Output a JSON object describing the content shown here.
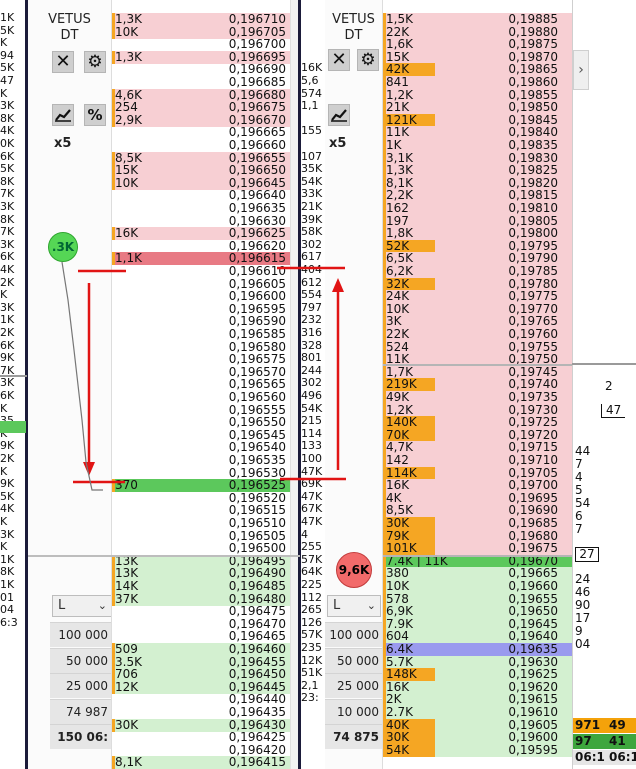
{
  "left_edge_labels": [
    "1K",
    "5K",
    "K",
    "94",
    "5K",
    "47",
    "K",
    "3K",
    "8K",
    "4K",
    "0K",
    "6K",
    "5K",
    "8K",
    "7K",
    "3K",
    "8K",
    "7K",
    "3K",
    "6K",
    "4K",
    "2K",
    "K",
    "3K",
    "1K",
    "2K",
    "6K",
    "9K",
    "7K",
    "3K",
    "6K",
    "K",
    "35",
    "K",
    "9K",
    "2K",
    "K",
    "9K",
    "5K",
    "4K",
    "K",
    "3K",
    "K",
    "1K",
    "8K",
    "1K",
    "01",
    "04",
    "6:3"
  ],
  "left_dom": {
    "title_line1": "VETUS",
    "title_line2": "DT",
    "close_icon": "close-icon",
    "gear_icon": "gear-icon",
    "chart_icon": "chart-line-icon",
    "percent_label": "%",
    "multiplier": "x5",
    "bubble_label": ".3K",
    "dropdown_value": "L",
    "quantities": [
      "100 000",
      "50 000",
      "25 000",
      "74 987",
      "150 06:"
    ],
    "rows": [
      {
        "vol": "1,3K",
        "price": "0,196710",
        "side": "ask"
      },
      {
        "vol": "10K",
        "price": "0,196705",
        "side": "ask"
      },
      {
        "vol": "",
        "price": "0,196700",
        "side": "none"
      },
      {
        "vol": "1,3K",
        "price": "0,196695",
        "side": "ask"
      },
      {
        "vol": "",
        "price": "0,196690",
        "side": "none"
      },
      {
        "vol": "",
        "price": "0,196685",
        "side": "none"
      },
      {
        "vol": "4,6K",
        "price": "0,196680",
        "side": "ask"
      },
      {
        "vol": "254",
        "price": "0,196675",
        "side": "ask"
      },
      {
        "vol": "2,9K",
        "price": "0,196670",
        "side": "ask"
      },
      {
        "vol": "",
        "price": "0,196665",
        "side": "none"
      },
      {
        "vol": "",
        "price": "0,196660",
        "side": "none"
      },
      {
        "vol": "8,5K",
        "price": "0,196655",
        "side": "ask"
      },
      {
        "vol": "15K",
        "price": "0,196650",
        "side": "ask"
      },
      {
        "vol": "10K",
        "price": "0,196645",
        "side": "ask"
      },
      {
        "vol": "",
        "price": "0,196640",
        "side": "none"
      },
      {
        "vol": "",
        "price": "0,196635",
        "side": "none"
      },
      {
        "vol": "",
        "price": "0,196630",
        "side": "none"
      },
      {
        "vol": "16K",
        "price": "0,196625",
        "side": "ask"
      },
      {
        "vol": "",
        "price": "0,196620",
        "side": "none"
      },
      {
        "vol": "1,1K",
        "price": "0,196615",
        "side": "ask-best"
      },
      {
        "vol": "",
        "price": "0,196610",
        "side": "none"
      },
      {
        "vol": "",
        "price": "0,196605",
        "side": "none"
      },
      {
        "vol": "",
        "price": "0,196600",
        "side": "none"
      },
      {
        "vol": "",
        "price": "0,196595",
        "side": "none"
      },
      {
        "vol": "",
        "price": "0,196590",
        "side": "none"
      },
      {
        "vol": "",
        "price": "0,196585",
        "side": "none"
      },
      {
        "vol": "",
        "price": "0,196580",
        "side": "none"
      },
      {
        "vol": "",
        "price": "0,196575",
        "side": "none"
      },
      {
        "vol": "",
        "price": "0,196570",
        "side": "none"
      },
      {
        "vol": "",
        "price": "0,196565",
        "side": "none"
      },
      {
        "vol": "",
        "price": "0,196560",
        "side": "none"
      },
      {
        "vol": "",
        "price": "0,196555",
        "side": "none"
      },
      {
        "vol": "",
        "price": "0,196550",
        "side": "none"
      },
      {
        "vol": "",
        "price": "0,196545",
        "side": "none"
      },
      {
        "vol": "",
        "price": "0,196540",
        "side": "none"
      },
      {
        "vol": "",
        "price": "0,196535",
        "side": "none"
      },
      {
        "vol": "",
        "price": "0,196530",
        "side": "none"
      },
      {
        "vol": "370",
        "price": "0,196525",
        "side": "bid-best"
      },
      {
        "vol": "",
        "price": "0,196520",
        "side": "none"
      },
      {
        "vol": "",
        "price": "0,196515",
        "side": "none"
      },
      {
        "vol": "",
        "price": "0,196510",
        "side": "none"
      },
      {
        "vol": "",
        "price": "0,196505",
        "side": "none"
      },
      {
        "vol": "",
        "price": "0,196500",
        "side": "none"
      },
      {
        "vol": "13K",
        "price": "0,196495",
        "side": "bid"
      },
      {
        "vol": "13K",
        "price": "0,196490",
        "side": "bid"
      },
      {
        "vol": "14K",
        "price": "0,196485",
        "side": "bid"
      },
      {
        "vol": "37K",
        "price": "0,196480",
        "side": "bid"
      },
      {
        "vol": "",
        "price": "0,196475",
        "side": "none"
      },
      {
        "vol": "",
        "price": "0,196470",
        "side": "none"
      },
      {
        "vol": "",
        "price": "0,196465",
        "side": "none"
      },
      {
        "vol": "509",
        "price": "0,196460",
        "side": "bid"
      },
      {
        "vol": "3.5K",
        "price": "0,196455",
        "side": "bid"
      },
      {
        "vol": "706",
        "price": "0,196450",
        "side": "bid"
      },
      {
        "vol": "12K",
        "price": "0,196445",
        "side": "bid"
      },
      {
        "vol": "",
        "price": "0,196440",
        "side": "none"
      },
      {
        "vol": "",
        "price": "0,196435",
        "side": "none"
      },
      {
        "vol": "30K",
        "price": "0,196430",
        "side": "bid"
      },
      {
        "vol": "",
        "price": "0,196425",
        "side": "none"
      },
      {
        "vol": "",
        "price": "0,196420",
        "side": "none"
      },
      {
        "vol": "8,1K",
        "price": "0,196415",
        "side": "bid"
      }
    ]
  },
  "mid_edge_labels": [
    "",
    "",
    "",
    "",
    "16K",
    "5,6",
    "574",
    "1,1",
    "",
    "155",
    "",
    "107",
    "35K",
    "54K",
    "33K",
    "21K",
    "39K",
    "58K",
    "302",
    "617",
    "404",
    "612",
    "554",
    "797",
    "232",
    "316",
    "328",
    "801",
    "244",
    "302",
    "496",
    "54K",
    "215",
    "114",
    "133",
    "100",
    "47K",
    "69K",
    "47K",
    "67K",
    "47K",
    "4",
    "255",
    "57K",
    "64K",
    "225",
    "112",
    "265",
    "126",
    "57K",
    "235",
    "12K",
    "51K",
    "2,1",
    "23:"
  ],
  "right_dom": {
    "title_line1": "VETUS",
    "title_line2": "DT",
    "close_icon": "close-icon",
    "gear_icon": "gear-icon",
    "chart_icon": "chart-line-icon",
    "multiplier": "x5",
    "bubble_label": "9,6K",
    "dropdown_value": "L",
    "quantities": [
      "100 000",
      "50 000",
      "25 000",
      "10 000",
      "74 875"
    ],
    "rows": [
      {
        "vol": "1,5K",
        "price": "0,19885",
        "side": "ask"
      },
      {
        "vol": "22K",
        "price": "0,19880",
        "side": "ask"
      },
      {
        "vol": "1,6K",
        "price": "0,19875",
        "side": "ask"
      },
      {
        "vol": "15K",
        "price": "0,19870",
        "side": "ask"
      },
      {
        "vol": "42K",
        "price": "0,19865",
        "side": "ask-hot"
      },
      {
        "vol": "841",
        "price": "0,19860",
        "side": "ask"
      },
      {
        "vol": "1,2K",
        "price": "0,19855",
        "side": "ask"
      },
      {
        "vol": "21K",
        "price": "0,19850",
        "side": "ask"
      },
      {
        "vol": "121K",
        "price": "0,19845",
        "side": "ask-hot"
      },
      {
        "vol": "11K",
        "price": "0,19840",
        "side": "ask"
      },
      {
        "vol": "1K",
        "price": "0,19835",
        "side": "ask"
      },
      {
        "vol": "3,1K",
        "price": "0,19830",
        "side": "ask"
      },
      {
        "vol": "1,3K",
        "price": "0,19825",
        "side": "ask"
      },
      {
        "vol": "8,1K",
        "price": "0,19820",
        "side": "ask"
      },
      {
        "vol": "2,2K",
        "price": "0,19815",
        "side": "ask"
      },
      {
        "vol": "162",
        "price": "0,19810",
        "side": "ask"
      },
      {
        "vol": "197",
        "price": "0,19805",
        "side": "ask"
      },
      {
        "vol": "1,8K",
        "price": "0,19800",
        "side": "ask"
      },
      {
        "vol": "52K",
        "price": "0,19795",
        "side": "ask-hot"
      },
      {
        "vol": "6,5K",
        "price": "0,19790",
        "side": "ask"
      },
      {
        "vol": "6,2K",
        "price": "0,19785",
        "side": "ask"
      },
      {
        "vol": "32K",
        "price": "0,19780",
        "side": "ask-hot"
      },
      {
        "vol": "24K",
        "price": "0,19775",
        "side": "ask"
      },
      {
        "vol": "10K",
        "price": "0,19770",
        "side": "ask"
      },
      {
        "vol": "3K",
        "price": "0,19765",
        "side": "ask"
      },
      {
        "vol": "22K",
        "price": "0,19760",
        "side": "ask"
      },
      {
        "vol": "524",
        "price": "0,19755",
        "side": "ask"
      },
      {
        "vol": "11K",
        "price": "0,19750",
        "side": "ask"
      },
      {
        "vol": "1,7K",
        "price": "0,19745",
        "side": "ask"
      },
      {
        "vol": "219K",
        "price": "0,19740",
        "side": "ask-hot"
      },
      {
        "vol": "49K",
        "price": "0,19735",
        "side": "ask"
      },
      {
        "vol": "1,2K",
        "price": "0,19730",
        "side": "ask"
      },
      {
        "vol": "140K",
        "price": "0,19725",
        "side": "ask-hot"
      },
      {
        "vol": "70K",
        "price": "0,19720",
        "side": "ask-hot"
      },
      {
        "vol": "4,7K",
        "price": "0,19715",
        "side": "ask"
      },
      {
        "vol": "142",
        "price": "0,19710",
        "side": "ask"
      },
      {
        "vol": "114K",
        "price": "0,19705",
        "side": "ask-hot"
      },
      {
        "vol": "16K",
        "price": "0,19700",
        "side": "ask"
      },
      {
        "vol": "4K",
        "price": "0,19695",
        "side": "ask"
      },
      {
        "vol": "8,5K",
        "price": "0,19690",
        "side": "ask"
      },
      {
        "vol": "30K",
        "price": "0,19685",
        "side": "ask-hot"
      },
      {
        "vol": "79K",
        "price": "0,19680",
        "side": "ask-hot"
      },
      {
        "vol": "101K",
        "price": "0,19675",
        "side": "ask-hot"
      },
      {
        "vol": "7.4K | 11K",
        "price": "0,19670",
        "side": "trade"
      },
      {
        "vol": "380",
        "price": "0,19665",
        "side": "bid"
      },
      {
        "vol": "10K",
        "price": "0,19660",
        "side": "bid"
      },
      {
        "vol": "578",
        "price": "0,19655",
        "side": "bid"
      },
      {
        "vol": "6,9K",
        "price": "0,19650",
        "side": "bid"
      },
      {
        "vol": "7.9K",
        "price": "0,19645",
        "side": "bid"
      },
      {
        "vol": "604",
        "price": "0,19640",
        "side": "bid"
      },
      {
        "vol": "6.4K",
        "price": "0,19635",
        "side": "bid-sel"
      },
      {
        "vol": "5.7K",
        "price": "0,19630",
        "side": "bid"
      },
      {
        "vol": "148K",
        "price": "0,19625",
        "side": "bid-hot"
      },
      {
        "vol": "16K",
        "price": "0,19620",
        "side": "bid"
      },
      {
        "vol": "2K",
        "price": "0,19615",
        "side": "bid"
      },
      {
        "vol": "2.7K",
        "price": "0,19610",
        "side": "bid"
      },
      {
        "vol": "40K",
        "price": "0,19605",
        "side": "bid-hot"
      },
      {
        "vol": "30K",
        "price": "0,19600",
        "side": "bid-hot"
      },
      {
        "vol": "54K",
        "price": "0,19595",
        "side": "bid-hot"
      }
    ]
  },
  "right_scale": {
    "top_label": "2",
    "box_label": "47",
    "labels": [
      "44",
      "7",
      "4",
      "5",
      "54",
      "6",
      "7"
    ],
    "box2_label": "27",
    "labels2": [
      "24",
      "46",
      "90",
      "17",
      "9",
      "04"
    ],
    "footer": [
      {
        "a": "971",
        "b": "49",
        "color": "#f4a20a"
      },
      {
        "a": "97",
        "b": "41",
        "color": "#3ea63e"
      },
      {
        "a": "06:1",
        "b": "06:1",
        "color": "#e6e6e6"
      }
    ]
  },
  "colors": {
    "ask": "#f7cfd3",
    "ask_best": "#e87a84",
    "ask_hot": "#f5a623",
    "bid": "#d3f0d0",
    "bid_best": "#5cc85c",
    "bid_hot": "#f5a623",
    "bid_sel": "#9a9aee",
    "accent_red": "#e11414",
    "bubble_green": "#55d655",
    "bubble_red": "#f26a6a"
  }
}
